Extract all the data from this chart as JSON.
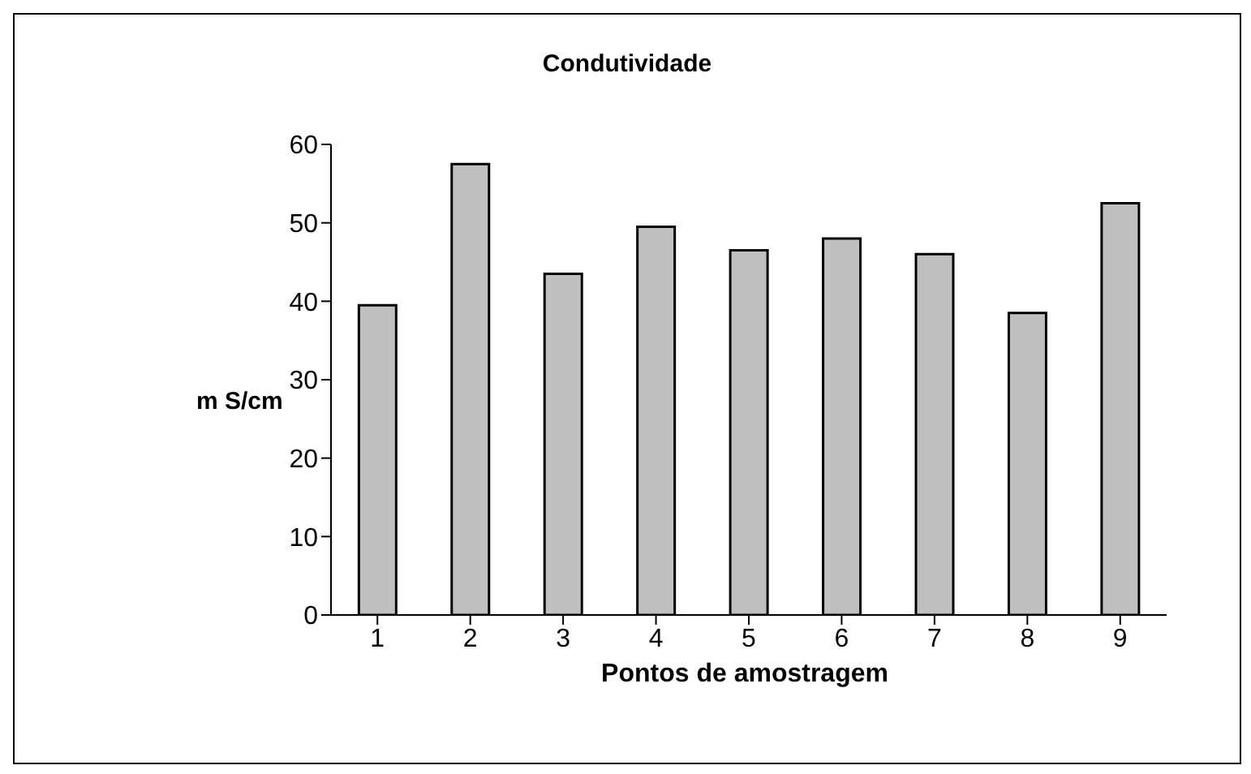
{
  "chart_data": {
    "type": "bar",
    "title": "Condutividade",
    "xlabel": "Pontos de amostragem",
    "ylabel": "m S/cm",
    "categories": [
      "1",
      "2",
      "3",
      "4",
      "5",
      "6",
      "7",
      "8",
      "9"
    ],
    "values": [
      39.5,
      57.5,
      43.5,
      49.5,
      46.5,
      48,
      46,
      38.5,
      52.5
    ],
    "color": "#c0c0c0",
    "ylim": [
      0,
      60
    ],
    "yticks": [
      0,
      10,
      20,
      30,
      40,
      50,
      60
    ],
    "grid": false,
    "legend": false
  }
}
